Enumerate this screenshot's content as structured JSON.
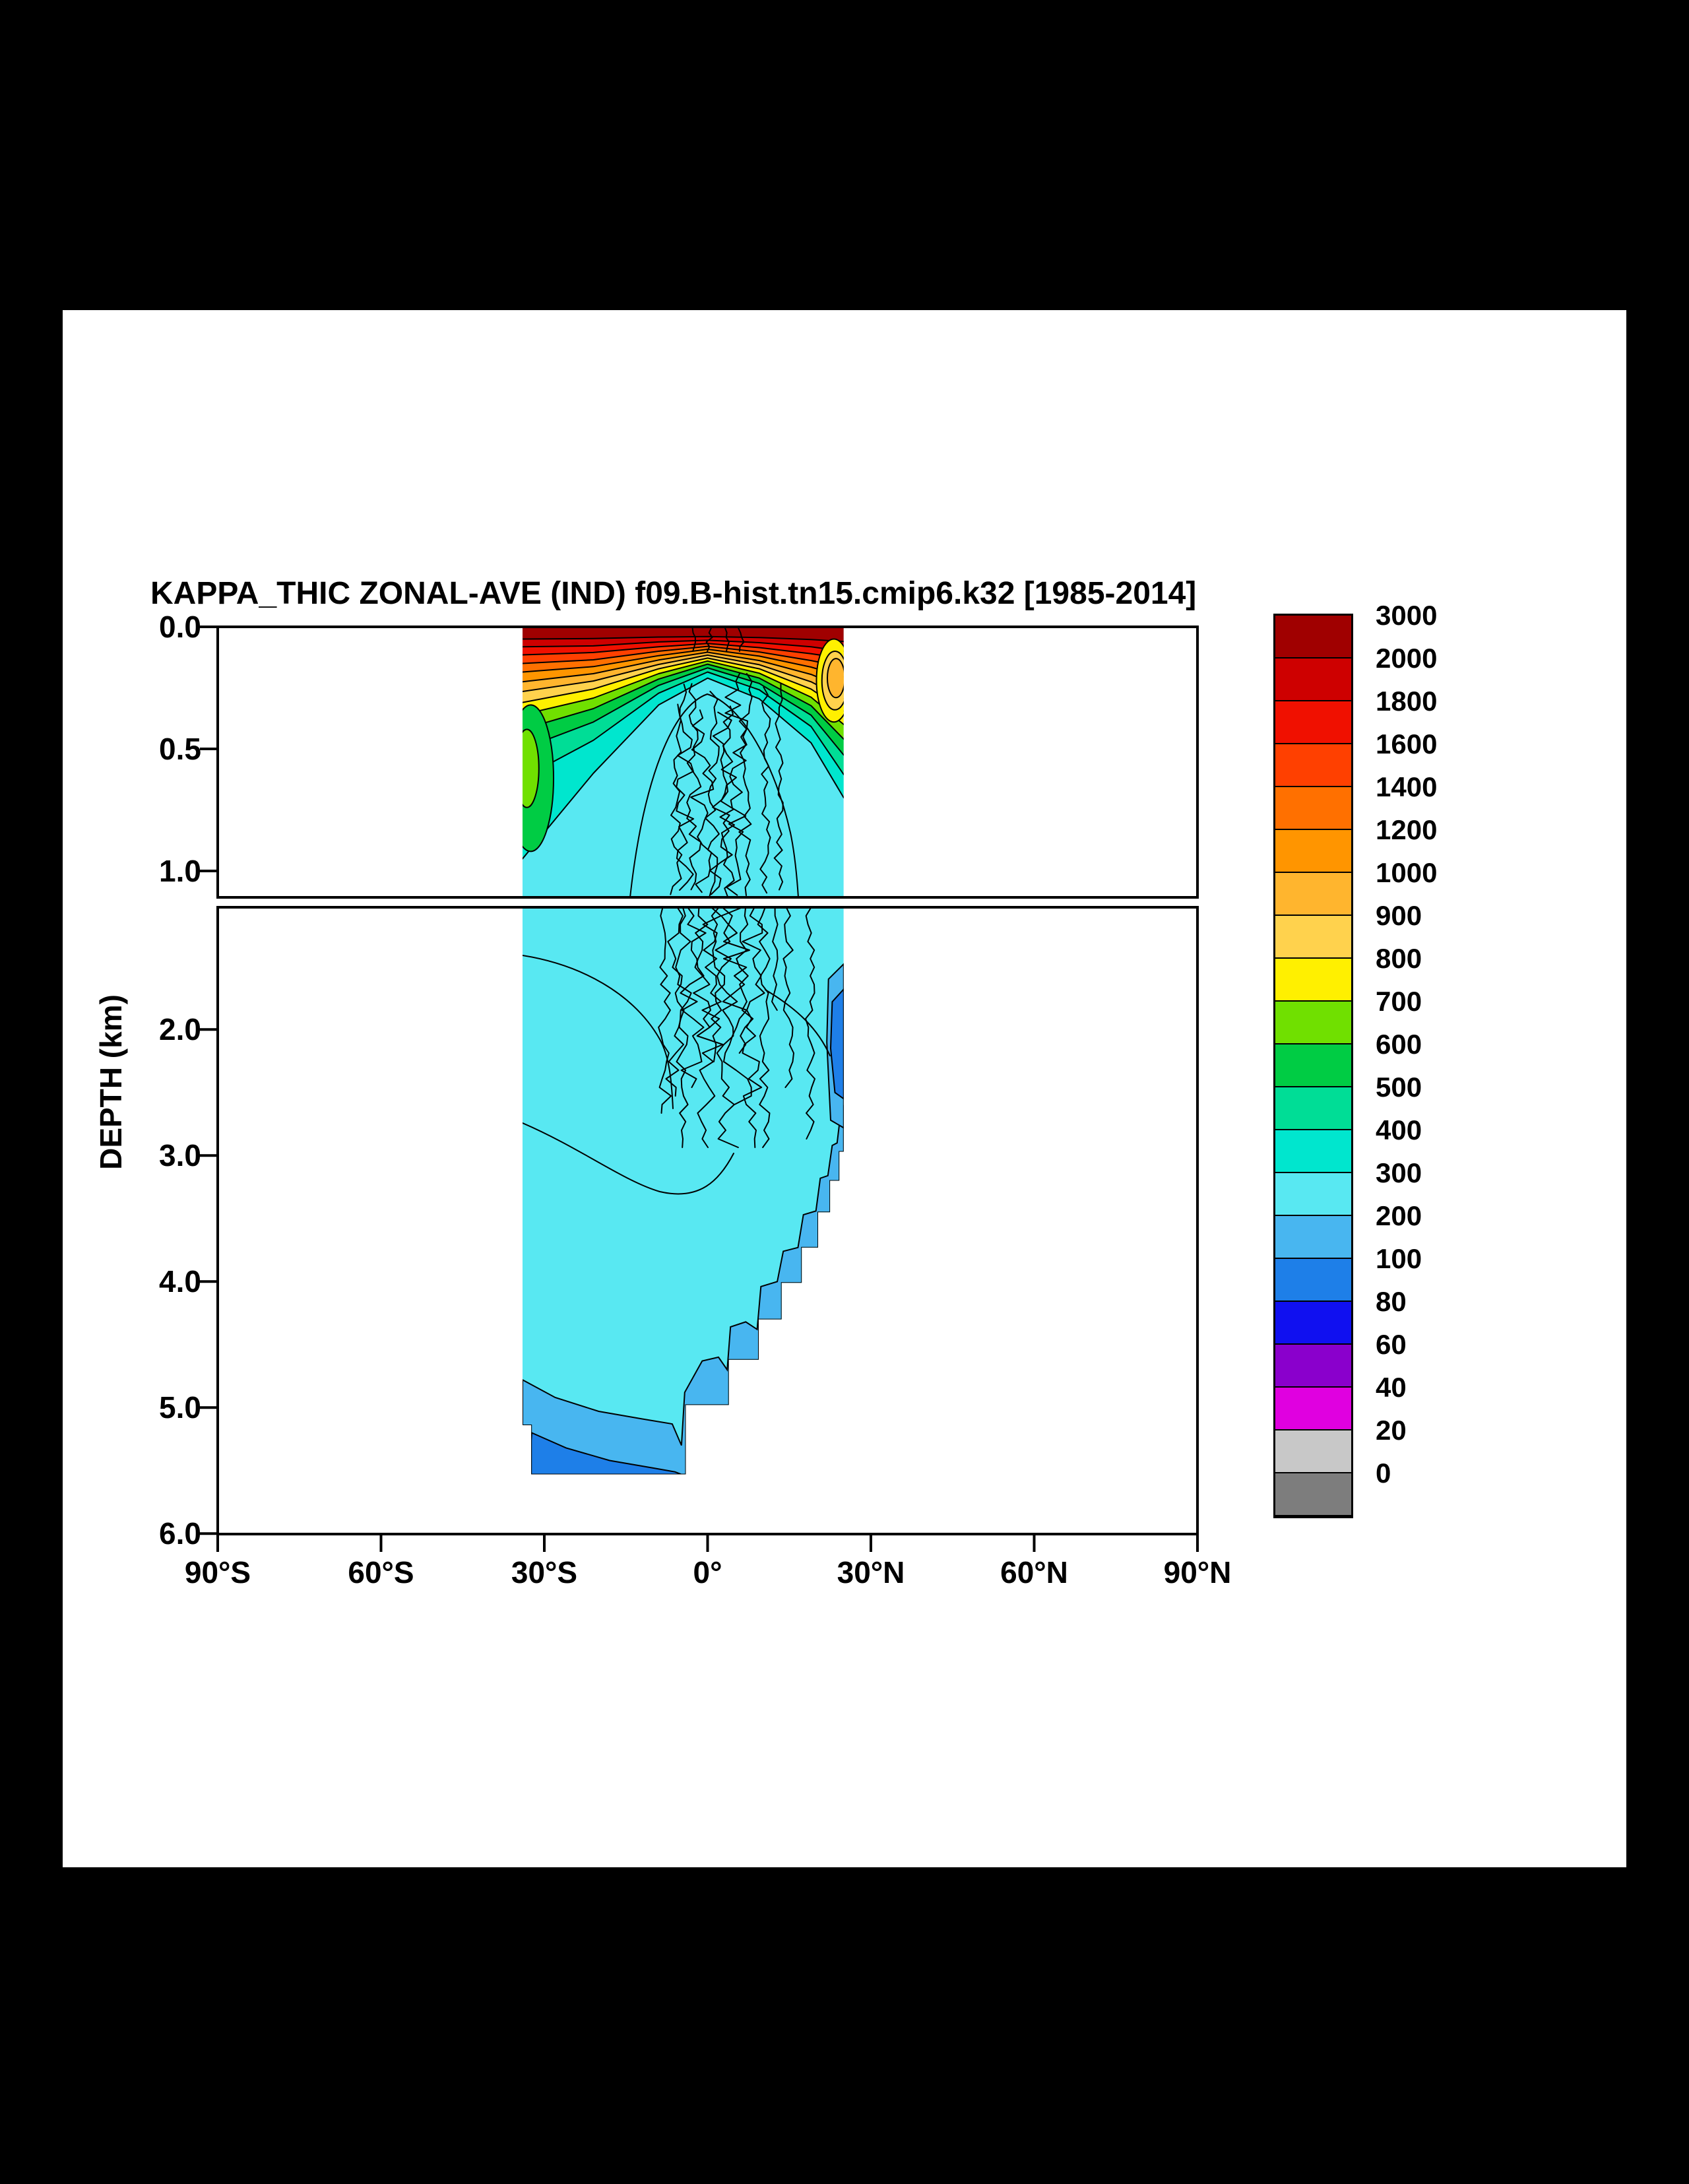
{
  "chart_data": {
    "type": "contour",
    "title": "KAPPA_THIC ZONAL-AVE (IND) f09.B-hist.tn15.cmip6.k32 [1985-2014]",
    "xlabel": "",
    "ylabel": "DEPTH (km)",
    "x_axis": {
      "ticks": [
        {
          "value": -90,
          "label": "90°S"
        },
        {
          "value": -60,
          "label": "60°S"
        },
        {
          "value": -30,
          "label": "30°S"
        },
        {
          "value": 0,
          "label": "0°"
        },
        {
          "value": 30,
          "label": "30°N"
        },
        {
          "value": 60,
          "label": "60°N"
        },
        {
          "value": 90,
          "label": "90°N"
        }
      ],
      "range": [
        -90,
        90
      ]
    },
    "y_axis": {
      "upper_ticks": [
        {
          "value": 0.0,
          "label": "0.0"
        },
        {
          "value": 0.5,
          "label": "0.5"
        },
        {
          "value": 1.0,
          "label": "1.0"
        }
      ],
      "lower_ticks": [
        {
          "value": 2.0,
          "label": "2.0"
        },
        {
          "value": 3.0,
          "label": "3.0"
        },
        {
          "value": 4.0,
          "label": "4.0"
        },
        {
          "value": 5.0,
          "label": "5.0"
        },
        {
          "value": 6.0,
          "label": "6.0"
        }
      ],
      "upper_range_km": [
        0.0,
        1.1
      ],
      "lower_range_km": [
        1.1,
        6.0
      ]
    },
    "data_extent": {
      "lat_min": -34,
      "lat_max": 25,
      "max_depth_km": 5.53
    },
    "colorbar": {
      "levels": [
        3000,
        2000,
        1800,
        1600,
        1400,
        1200,
        1000,
        900,
        800,
        700,
        600,
        500,
        400,
        300,
        200,
        100,
        80,
        60,
        40,
        20,
        0
      ],
      "colors": [
        "#A00000",
        "#CE0000",
        "#F01000",
        "#FF4000",
        "#FF7000",
        "#FF9500",
        "#FFB52E",
        "#FFD24D",
        "#FFF000",
        "#70E000",
        "#00CC44",
        "#00DD96",
        "#00E6CE",
        "#58E8F2",
        "#48B6F0",
        "#1E7FE8",
        "#1010F0",
        "#8A00CC",
        "#E000E0",
        "#C8C8C8",
        "#7D7D7D"
      ]
    },
    "surface_bands": {
      "lat_nodes": [
        -34,
        -21,
        -9,
        0,
        9.5,
        19,
        25
      ],
      "base_level": 300,
      "bands": [
        {
          "level": 3000,
          "bottom_depth_km": [
            0.05,
            0.048,
            0.042,
            0.04,
            0.044,
            0.052,
            0.06
          ]
        },
        {
          "level": 2000,
          "bottom_depth_km": [
            0.082,
            0.078,
            0.062,
            0.055,
            0.065,
            0.082,
            0.1
          ]
        },
        {
          "level": 1800,
          "bottom_depth_km": [
            0.115,
            0.105,
            0.082,
            0.068,
            0.085,
            0.11,
            0.13
          ]
        },
        {
          "level": 1600,
          "bottom_depth_km": [
            0.15,
            0.135,
            0.1,
            0.08,
            0.103,
            0.138,
            0.165
          ]
        },
        {
          "level": 1400,
          "bottom_depth_km": [
            0.185,
            0.163,
            0.118,
            0.092,
            0.12,
            0.165,
            0.205
          ]
        },
        {
          "level": 1200,
          "bottom_depth_km": [
            0.225,
            0.192,
            0.136,
            0.104,
            0.138,
            0.195,
            0.25
          ]
        },
        {
          "level": 1000,
          "bottom_depth_km": [
            0.265,
            0.222,
            0.154,
            0.116,
            0.155,
            0.225,
            0.295
          ]
        },
        {
          "level": 900,
          "bottom_depth_km": [
            0.31,
            0.255,
            0.172,
            0.128,
            0.172,
            0.255,
            0.345
          ]
        },
        {
          "level": 800,
          "bottom_depth_km": [
            0.36,
            0.292,
            0.192,
            0.14,
            0.19,
            0.288,
            0.4
          ]
        },
        {
          "level": 700,
          "bottom_depth_km": [
            0.42,
            0.335,
            0.214,
            0.153,
            0.21,
            0.323,
            0.46
          ]
        },
        {
          "level": 600,
          "bottom_depth_km": [
            0.5,
            0.39,
            0.24,
            0.168,
            0.232,
            0.362,
            0.525
          ]
        },
        {
          "level": 500,
          "bottom_depth_km": [
            0.62,
            0.465,
            0.272,
            0.185,
            0.258,
            0.408,
            0.605
          ]
        },
        {
          "level": 400,
          "bottom_depth_km": [
            0.95,
            0.6,
            0.32,
            0.21,
            0.295,
            0.475,
            0.7
          ]
        }
      ]
    },
    "features": [
      {
        "level": 600,
        "type": "ellipse",
        "lat": -32.5,
        "depth_km": 0.62,
        "rx_deg": 4.2,
        "ry_km": 0.3
      },
      {
        "level": 700,
        "type": "ellipse",
        "lat": -33.2,
        "depth_km": 0.58,
        "rx_deg": 2.2,
        "ry_km": 0.16
      },
      {
        "level": 800,
        "type": "ellipse",
        "lat": 23.2,
        "depth_km": 0.22,
        "rx_deg": 3.2,
        "ry_km": 0.17
      },
      {
        "level": 900,
        "type": "ellipse",
        "lat": 23.4,
        "depth_km": 0.22,
        "rx_deg": 2.4,
        "ry_km": 0.12
      },
      {
        "level": 1000,
        "type": "ellipse",
        "lat": 23.6,
        "depth_km": 0.21,
        "rx_deg": 1.6,
        "ry_km": 0.08
      }
    ],
    "bathymetry_lat_depth_km": [
      [
        -34,
        5.14
      ],
      [
        -32.4,
        5.14
      ],
      [
        -32.4,
        5.53
      ],
      [
        -4,
        5.53
      ],
      [
        -4,
        4.98
      ],
      [
        3.9,
        4.98
      ],
      [
        3.9,
        4.62
      ],
      [
        9.4,
        4.62
      ],
      [
        9.4,
        4.3
      ],
      [
        13.6,
        4.3
      ],
      [
        13.6,
        4.01
      ],
      [
        17.3,
        4.01
      ],
      [
        17.3,
        3.73
      ],
      [
        20.3,
        3.73
      ],
      [
        20.3,
        3.45
      ],
      [
        22.5,
        3.45
      ],
      [
        22.5,
        3.2
      ],
      [
        24.2,
        3.2
      ],
      [
        24.2,
        2.97
      ],
      [
        25,
        2.97
      ]
    ],
    "deep_regions": [
      {
        "level": 200,
        "kind": "floor_band",
        "boundary": [
          [
            -34,
            4.78
          ],
          [
            -28,
            4.92
          ],
          [
            -20,
            5.03
          ],
          [
            -12,
            5.09
          ],
          [
            -6.5,
            5.13
          ],
          [
            -4.8,
            5.3
          ],
          [
            -4.2,
            4.88
          ],
          [
            -1,
            4.63
          ],
          [
            2,
            4.6
          ],
          [
            3.6,
            4.7
          ],
          [
            4.2,
            4.36
          ],
          [
            7,
            4.32
          ],
          [
            9.1,
            4.38
          ],
          [
            9.8,
            4.04
          ],
          [
            12.8,
            4.0
          ],
          [
            13.9,
            3.76
          ],
          [
            16.6,
            3.73
          ],
          [
            17.6,
            3.47
          ],
          [
            19.9,
            3.44
          ],
          [
            20.7,
            3.18
          ],
          [
            22.1,
            3.16
          ],
          [
            22.9,
            2.92
          ],
          [
            23.8,
            2.9
          ],
          [
            24.4,
            2.68
          ],
          [
            25,
            2.6
          ]
        ]
      },
      {
        "level": 200,
        "kind": "polygon",
        "points": [
          [
            22.2,
            1.6
          ],
          [
            25,
            1.48
          ],
          [
            25,
            2.78
          ],
          [
            22.6,
            2.72
          ],
          [
            21.9,
            2.1
          ]
        ]
      },
      {
        "level": 100,
        "kind": "polygon",
        "points": [
          [
            -32.3,
            5.2
          ],
          [
            -26,
            5.32
          ],
          [
            -18,
            5.42
          ],
          [
            -10,
            5.48
          ],
          [
            -6,
            5.51
          ],
          [
            -4.8,
            5.53
          ],
          [
            -32.4,
            5.53
          ],
          [
            -32.4,
            5.26
          ]
        ]
      },
      {
        "level": 100,
        "kind": "polygon",
        "points": [
          [
            -3.8,
            4.99
          ],
          [
            2,
            5.0
          ],
          [
            3.6,
            4.99
          ],
          [
            1.5,
            5.18
          ],
          [
            -1.5,
            5.32
          ],
          [
            -3.8,
            5.18
          ]
        ]
      },
      {
        "level": 100,
        "kind": "polygon",
        "points": [
          [
            22.9,
            1.78
          ],
          [
            25,
            1.68
          ],
          [
            25,
            2.55
          ],
          [
            23.4,
            2.5
          ],
          [
            22.6,
            2.15
          ]
        ]
      }
    ],
    "colors": {
      "background": "#000000",
      "plot_background": "#FFFFFF",
      "contour_line": "#000000"
    }
  }
}
